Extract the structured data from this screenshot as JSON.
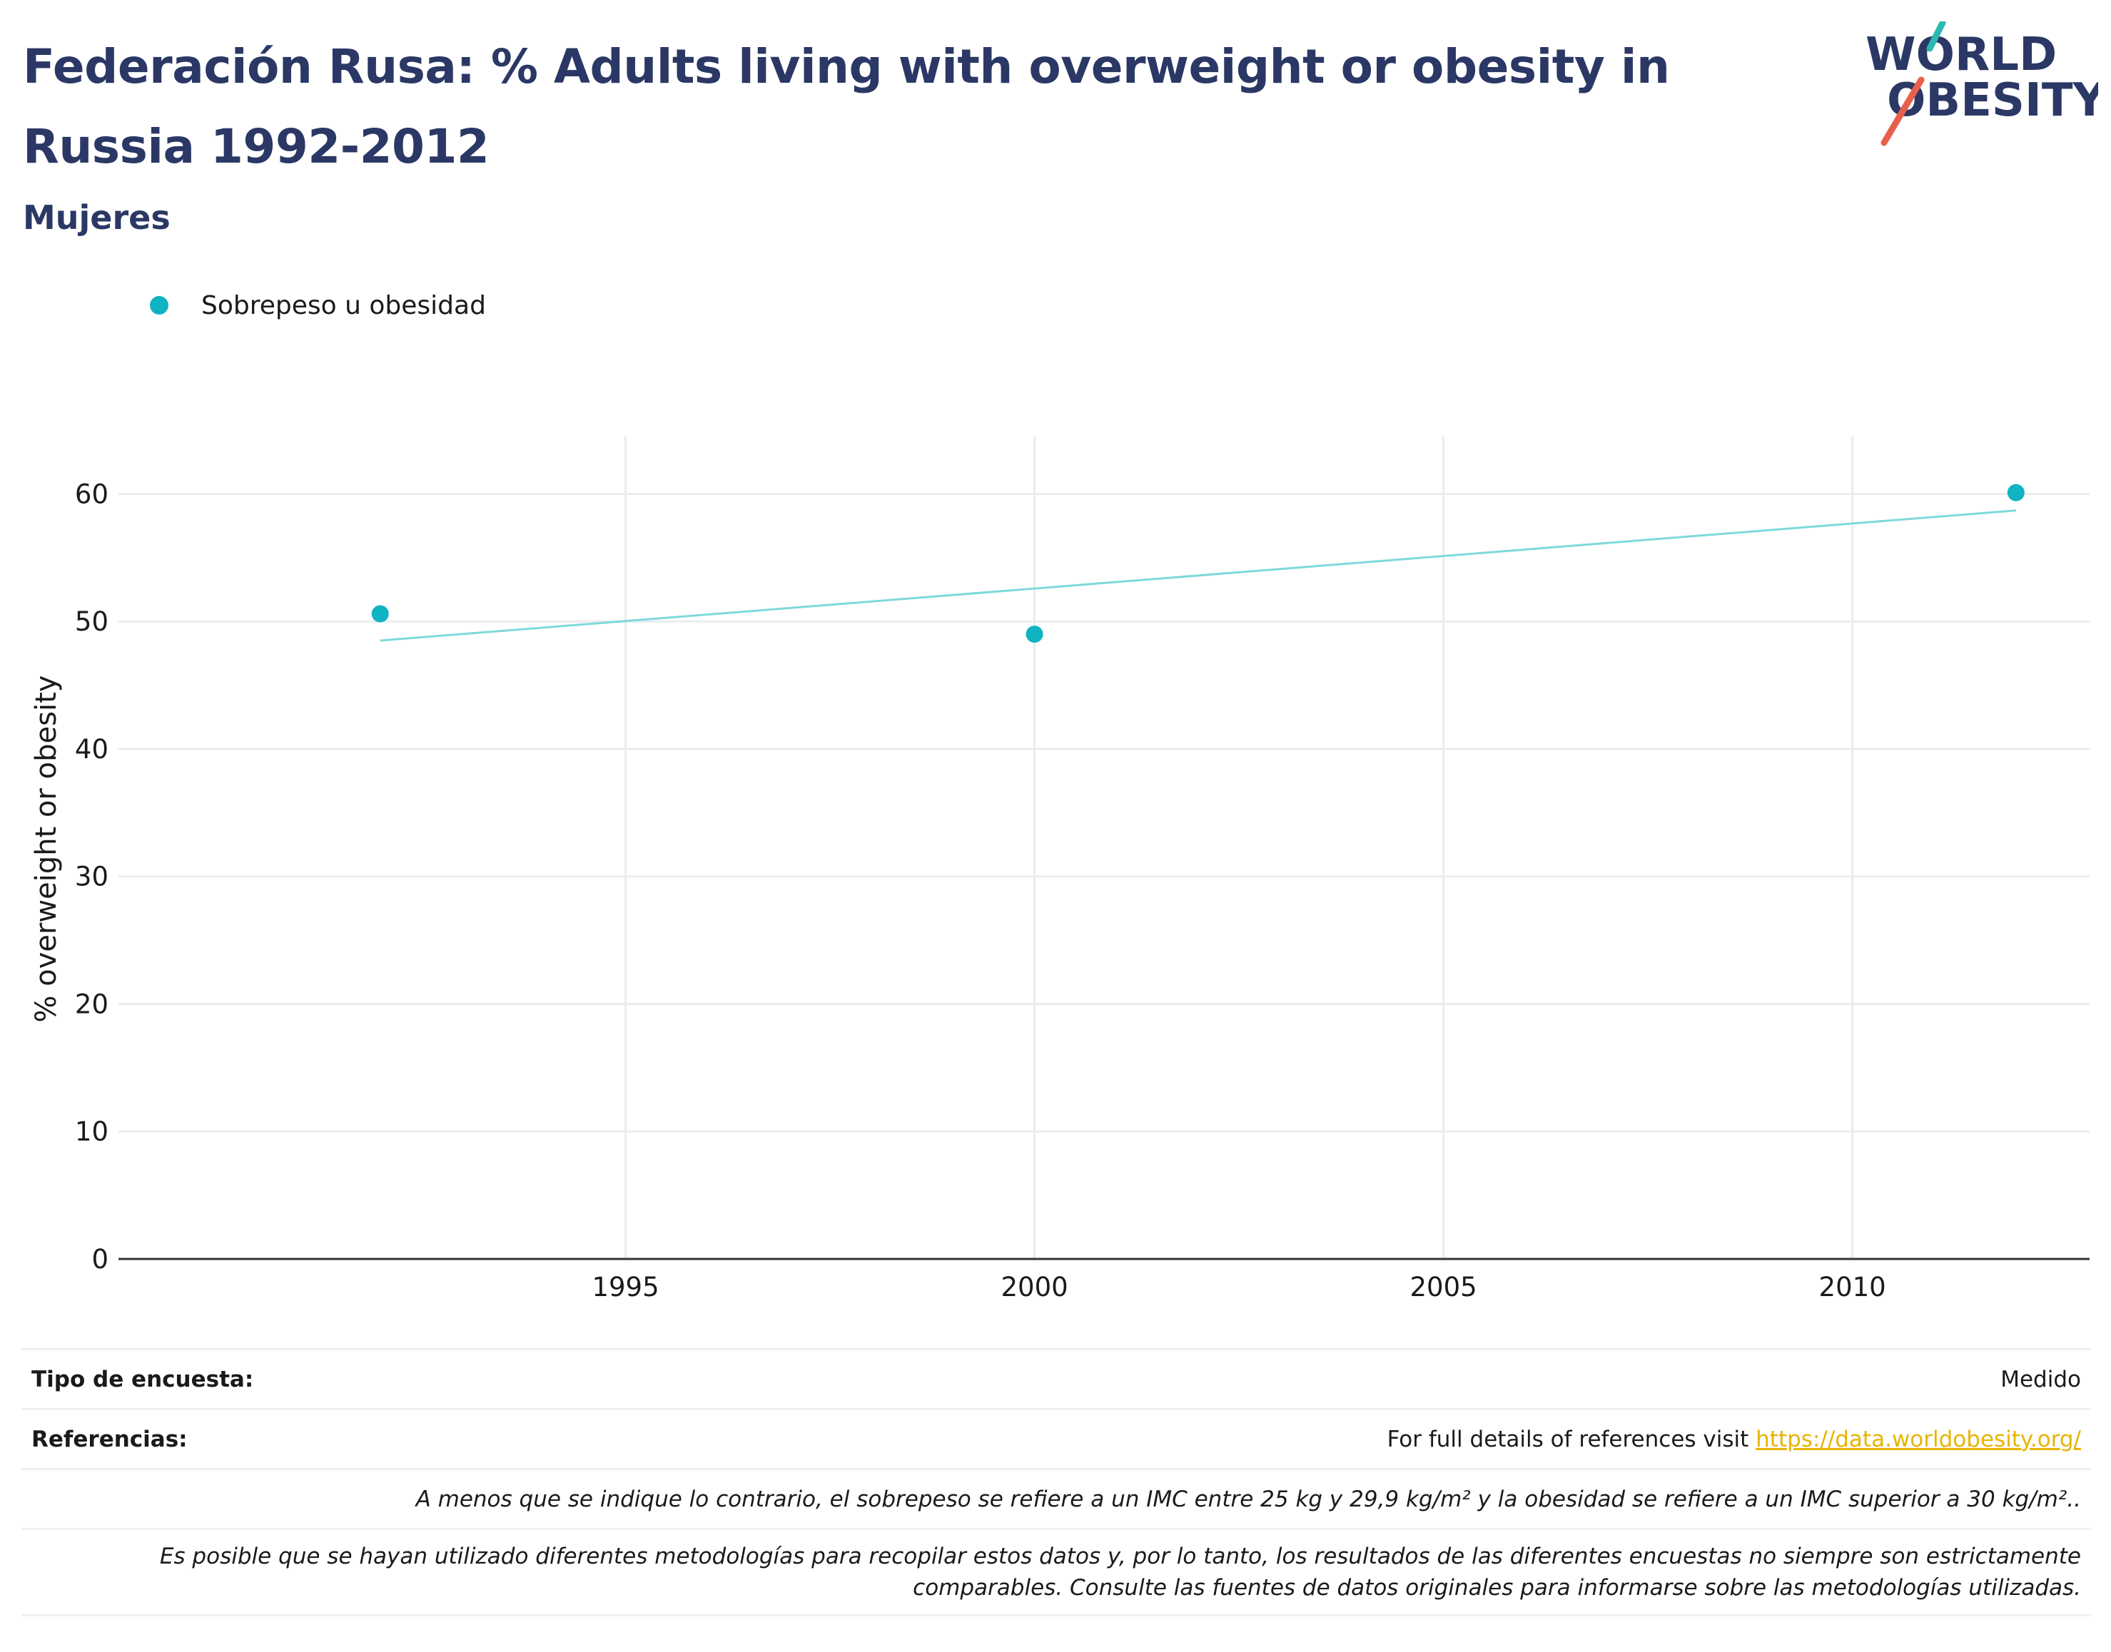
{
  "header": {
    "title": "Federación Rusa: % Adults living with overweight or obesity in Russia 1992-2012",
    "subtitle": "Mujeres"
  },
  "logo": {
    "line1": "WORLD",
    "line2": "OBESITY"
  },
  "colors": {
    "series": "#10b3c1",
    "trend": "#7fd8dd",
    "title": "#2b3865",
    "link": "#e8b400",
    "logo_teal": "#2bb8b0",
    "logo_red": "#e8604c"
  },
  "chart_data": {
    "type": "scatter",
    "title": "Federación Rusa: % Adults living with overweight or obesity in Russia 1992-2012",
    "subtitle": "Mujeres",
    "xlabel": "",
    "ylabel": "% overweight or obesity",
    "xlim": [
      1988.8,
      2012.9
    ],
    "ylim": [
      0,
      64.5
    ],
    "xticks": [
      1995,
      2000,
      2005,
      2010
    ],
    "yticks": [
      0,
      10,
      20,
      30,
      40,
      50,
      60
    ],
    "grid": true,
    "legend_position": "top-left",
    "series": [
      {
        "name": "Sobrepeso u obesidad",
        "x": [
          1992,
          2000,
          2012
        ],
        "y": [
          50.6,
          49.0,
          60.1
        ]
      }
    ],
    "trendline": {
      "x": [
        1992,
        2012
      ],
      "y": [
        48.5,
        58.7
      ]
    }
  },
  "footer": {
    "survey_type_label": "Tipo de encuesta:",
    "survey_type_value": "Medido",
    "references_label": "Referencias:",
    "references_text": "For full details of references visit ",
    "references_link": "https://data.worldobesity.org/",
    "note1": "A menos que se indique lo contrario, el sobrepeso se refiere a un IMC entre 25 kg y 29,9 kg/m² y la obesidad se refiere a un IMC superior a 30 kg/m²..",
    "note2_line1": "Es posible que se hayan utilizado diferentes metodologías para recopilar estos datos y, por lo tanto, los resultados de las diferentes encuestas no siempre son estrictamente",
    "note2_line2": "comparables. Consulte las fuentes de datos originales para informarse sobre las metodologías utilizadas."
  }
}
